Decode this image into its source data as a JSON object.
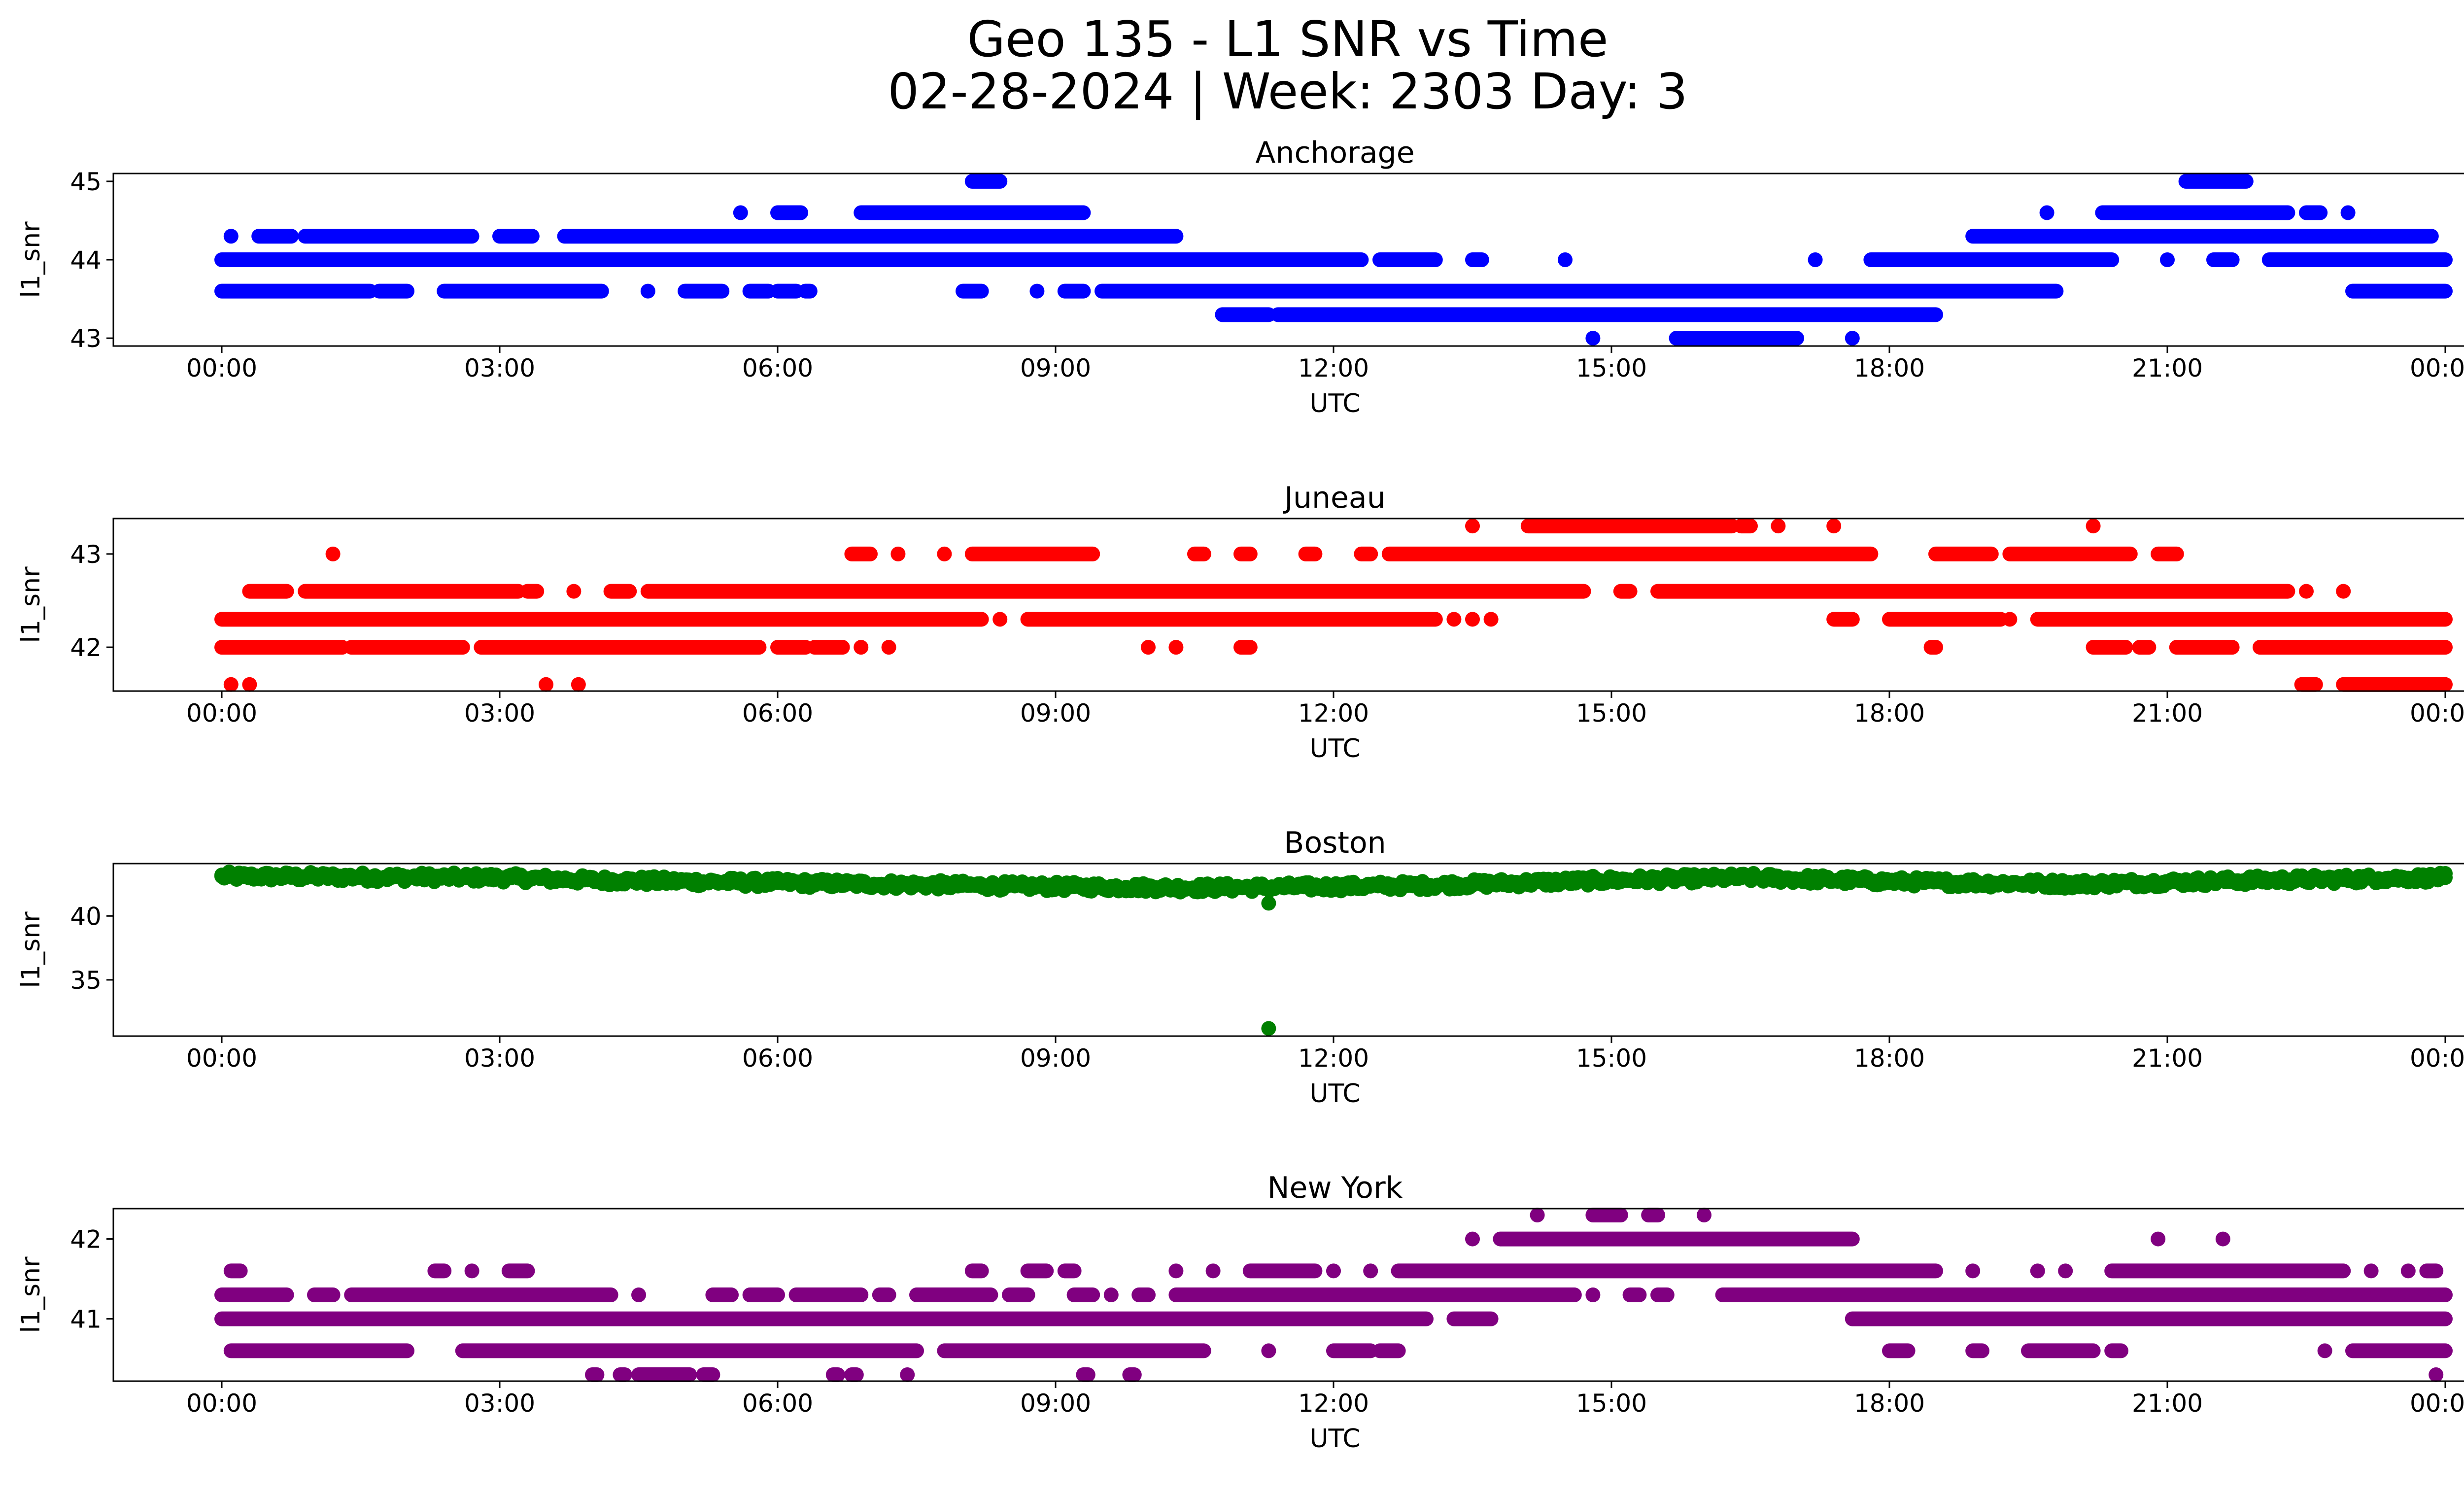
{
  "title_line1": "Geo 135 - L1 SNR vs Time",
  "title_line2": "02-28-2024 | Week: 2303 Day: 3",
  "chart_data": [
    {
      "type": "scatter",
      "title": "Anchorage",
      "xlabel": "UTC",
      "ylabel": "l1_snr",
      "color": "#0000ff",
      "x_ticks": [
        "00:00",
        "03:00",
        "06:00",
        "09:00",
        "12:00",
        "15:00",
        "18:00",
        "21:00",
        "00:00"
      ],
      "xlim_hours": [
        0,
        24
      ],
      "y_ticks": [
        43,
        44,
        45
      ],
      "ylim": [
        42.9,
        45.1
      ],
      "levels": [
        {
          "y": 45.0,
          "segments": [
            [
              8.1,
              8.4
            ],
            [
              21.2,
              21.85
            ]
          ]
        },
        {
          "y": 44.6,
          "segments": [
            [
              5.6,
              5.6
            ],
            [
              6.0,
              6.25
            ],
            [
              6.9,
              9.3
            ],
            [
              19.7,
              19.7
            ],
            [
              20.3,
              22.3
            ],
            [
              22.5,
              22.65
            ],
            [
              22.95,
              22.95
            ]
          ]
        },
        {
          "y": 44.3,
          "segments": [
            [
              0.1,
              0.1
            ],
            [
              0.4,
              0.75
            ],
            [
              0.9,
              2.7
            ],
            [
              3.0,
              3.35
            ],
            [
              3.7,
              10.3
            ],
            [
              18.9,
              23.85
            ]
          ]
        },
        {
          "y": 44.0,
          "segments": [
            [
              0,
              12.3
            ],
            [
              12.5,
              13.1
            ],
            [
              13.5,
              13.6
            ],
            [
              14.5,
              14.5
            ],
            [
              17.2,
              17.2
            ],
            [
              17.8,
              20.4
            ],
            [
              21.0,
              21.0
            ],
            [
              21.5,
              21.7
            ],
            [
              22.1,
              24
            ]
          ]
        },
        {
          "y": 43.6,
          "segments": [
            [
              0,
              1.6
            ],
            [
              1.7,
              2.0
            ],
            [
              2.4,
              4.1
            ],
            [
              4.6,
              4.6
            ],
            [
              5.0,
              5.4
            ],
            [
              5.7,
              5.9
            ],
            [
              6.0,
              6.2
            ],
            [
              6.3,
              6.35
            ],
            [
              8.0,
              8.2
            ],
            [
              8.8,
              8.8
            ],
            [
              9.1,
              9.3
            ],
            [
              9.5,
              19.8
            ],
            [
              23.0,
              24
            ]
          ]
        },
        {
          "y": 43.3,
          "segments": [
            [
              10.8,
              11.3
            ],
            [
              11.4,
              18.5
            ]
          ]
        },
        {
          "y": 43.0,
          "segments": [
            [
              14.8,
              14.8
            ],
            [
              15.7,
              17.0
            ],
            [
              17.6,
              17.6
            ]
          ]
        }
      ]
    },
    {
      "type": "scatter",
      "title": "Juneau",
      "xlabel": "UTC",
      "ylabel": "l1_snr",
      "color": "#ff0000",
      "x_ticks": [
        "00:00",
        "03:00",
        "06:00",
        "09:00",
        "12:00",
        "15:00",
        "18:00",
        "21:00",
        "00:00"
      ],
      "xlim_hours": [
        0,
        24
      ],
      "y_ticks": [
        42,
        43
      ],
      "ylim": [
        41.53,
        43.38
      ],
      "levels": [
        {
          "y": 43.3,
          "segments": [
            [
              13.5,
              13.5
            ],
            [
              14.1,
              16.3
            ],
            [
              16.4,
              16.5
            ],
            [
              16.8,
              16.8
            ],
            [
              17.4,
              17.4
            ],
            [
              20.2,
              20.2
            ]
          ]
        },
        {
          "y": 43.0,
          "segments": [
            [
              1.2,
              1.2
            ],
            [
              6.8,
              7.0
            ],
            [
              7.3,
              7.3
            ],
            [
              7.8,
              7.8
            ],
            [
              8.1,
              9.4
            ],
            [
              10.5,
              10.6
            ],
            [
              11.0,
              11.1
            ],
            [
              11.7,
              11.8
            ],
            [
              12.3,
              12.4
            ],
            [
              12.6,
              17.8
            ],
            [
              18.5,
              19.1
            ],
            [
              19.3,
              20.6
            ],
            [
              20.9,
              21.1
            ]
          ]
        },
        {
          "y": 42.6,
          "segments": [
            [
              0.3,
              0.7
            ],
            [
              0.9,
              3.2
            ],
            [
              3.3,
              3.4
            ],
            [
              3.8,
              3.8
            ],
            [
              4.2,
              4.4
            ],
            [
              4.6,
              14.7
            ],
            [
              15.1,
              15.2
            ],
            [
              15.5,
              22.3
            ],
            [
              22.5,
              22.5
            ],
            [
              22.9,
              22.9
            ]
          ]
        },
        {
          "y": 42.3,
          "segments": [
            [
              0,
              8.2
            ],
            [
              8.4,
              8.4
            ],
            [
              8.7,
              13.1
            ],
            [
              13.3,
              13.3
            ],
            [
              13.5,
              13.5
            ],
            [
              13.7,
              13.7
            ],
            [
              17.4,
              17.6
            ],
            [
              18.0,
              19.2
            ],
            [
              19.3,
              19.3
            ],
            [
              19.6,
              24
            ]
          ]
        },
        {
          "y": 42.0,
          "segments": [
            [
              0,
              1.3
            ],
            [
              1.4,
              2.6
            ],
            [
              2.8,
              5.8
            ],
            [
              6.0,
              6.3
            ],
            [
              6.4,
              6.7
            ],
            [
              6.9,
              6.9
            ],
            [
              7.2,
              7.2
            ],
            [
              10.0,
              10.0
            ],
            [
              10.3,
              10.3
            ],
            [
              11.0,
              11.1
            ],
            [
              18.45,
              18.5
            ],
            [
              20.2,
              20.55
            ],
            [
              20.7,
              20.8
            ],
            [
              21.1,
              21.7
            ],
            [
              22.0,
              24
            ]
          ]
        },
        {
          "y": 41.6,
          "segments": [
            [
              0.1,
              0.1
            ],
            [
              0.3,
              0.3
            ],
            [
              3.5,
              3.5
            ],
            [
              3.85,
              3.85
            ],
            [
              22.45,
              22.6
            ],
            [
              22.9,
              24
            ]
          ]
        }
      ]
    },
    {
      "type": "scatter",
      "title": "Boston",
      "xlabel": "UTC",
      "ylabel": "l1_snr",
      "color": "#008000",
      "x_ticks": [
        "00:00",
        "03:00",
        "06:00",
        "09:00",
        "12:00",
        "15:00",
        "18:00",
        "21:00",
        "00:00"
      ],
      "xlim_hours": [
        0,
        24
      ],
      "y_ticks": [
        35,
        40
      ],
      "ylim": [
        30.6,
        44.1
      ],
      "band": {
        "x_start": 0,
        "x_end": 24,
        "mean_profile": [
          [
            0,
            43.1
          ],
          [
            3,
            43.0
          ],
          [
            4,
            42.8
          ],
          [
            6,
            42.6
          ],
          [
            9,
            42.3
          ],
          [
            10.5,
            42.2
          ],
          [
            12,
            42.3
          ],
          [
            13,
            42.4
          ],
          [
            15,
            42.8
          ],
          [
            16.5,
            43.0
          ],
          [
            18,
            42.7
          ],
          [
            20,
            42.5
          ],
          [
            22,
            42.8
          ],
          [
            24,
            43.0
          ]
        ],
        "spread": 0.7
      },
      "outliers": [
        {
          "x": 11.3,
          "y": 41.0
        },
        {
          "x": 11.3,
          "y": 31.2
        }
      ]
    },
    {
      "type": "scatter",
      "title": "New York",
      "xlabel": "UTC",
      "ylabel": "l1_snr",
      "color": "#800080",
      "x_ticks": [
        "00:00",
        "03:00",
        "06:00",
        "09:00",
        "12:00",
        "15:00",
        "18:00",
        "21:00",
        "00:00"
      ],
      "xlim_hours": [
        0,
        24
      ],
      "y_ticks": [
        41,
        42
      ],
      "ylim": [
        40.22,
        42.38
      ],
      "levels": [
        {
          "y": 42.3,
          "segments": [
            [
              14.2,
              14.2
            ],
            [
              14.8,
              15.1
            ],
            [
              15.4,
              15.5
            ],
            [
              16.0,
              16.0
            ]
          ]
        },
        {
          "y": 42.0,
          "segments": [
            [
              13.5,
              13.5
            ],
            [
              13.8,
              17.6
            ],
            [
              20.9,
              20.9
            ],
            [
              21.6,
              21.6
            ]
          ]
        },
        {
          "y": 41.6,
          "segments": [
            [
              0.1,
              0.2
            ],
            [
              2.3,
              2.4
            ],
            [
              2.7,
              2.7
            ],
            [
              3.1,
              3.3
            ],
            [
              8.1,
              8.2
            ],
            [
              8.7,
              8.9
            ],
            [
              9.1,
              9.2
            ],
            [
              10.3,
              10.3
            ],
            [
              10.7,
              10.7
            ],
            [
              11.1,
              11.8
            ],
            [
              12.0,
              12.0
            ],
            [
              12.4,
              12.4
            ],
            [
              12.7,
              18.5
            ],
            [
              18.9,
              18.9
            ],
            [
              19.6,
              19.6
            ],
            [
              19.9,
              19.9
            ],
            [
              20.4,
              22.9
            ],
            [
              23.2,
              23.2
            ],
            [
              23.6,
              23.6
            ],
            [
              23.8,
              23.9
            ]
          ]
        },
        {
          "y": 41.3,
          "segments": [
            [
              0,
              0.7
            ],
            [
              1.0,
              1.2
            ],
            [
              1.4,
              4.2
            ],
            [
              4.5,
              4.5
            ],
            [
              5.3,
              5.5
            ],
            [
              5.7,
              6.0
            ],
            [
              6.2,
              6.9
            ],
            [
              7.1,
              7.2
            ],
            [
              7.5,
              8.3
            ],
            [
              8.5,
              8.7
            ],
            [
              9.2,
              9.4
            ],
            [
              9.6,
              9.6
            ],
            [
              9.9,
              10.0
            ],
            [
              10.3,
              14.6
            ],
            [
              14.8,
              14.8
            ],
            [
              15.2,
              15.3
            ],
            [
              15.5,
              15.6
            ],
            [
              16.2,
              24
            ]
          ]
        },
        {
          "y": 41.0,
          "segments": [
            [
              0,
              13.0
            ],
            [
              13.3,
              13.7
            ],
            [
              17.6,
              24
            ]
          ]
        },
        {
          "y": 40.6,
          "segments": [
            [
              0.1,
              2.0
            ],
            [
              2.6,
              7.5
            ],
            [
              7.8,
              10.6
            ],
            [
              11.3,
              11.3
            ],
            [
              12.0,
              12.4
            ],
            [
              12.5,
              12.7
            ],
            [
              18.0,
              18.2
            ],
            [
              18.9,
              19.0
            ],
            [
              19.5,
              20.2
            ],
            [
              20.4,
              20.5
            ],
            [
              22.7,
              22.7
            ],
            [
              23.0,
              24
            ]
          ]
        },
        {
          "y": 40.3,
          "segments": [
            [
              4.0,
              4.05
            ],
            [
              4.3,
              4.35
            ],
            [
              4.5,
              5.05
            ],
            [
              5.2,
              5.3
            ],
            [
              6.6,
              6.65
            ],
            [
              6.8,
              6.85
            ],
            [
              7.4,
              7.4
            ],
            [
              9.3,
              9.35
            ],
            [
              9.8,
              9.85
            ],
            [
              23.9,
              23.9
            ]
          ]
        }
      ]
    }
  ]
}
